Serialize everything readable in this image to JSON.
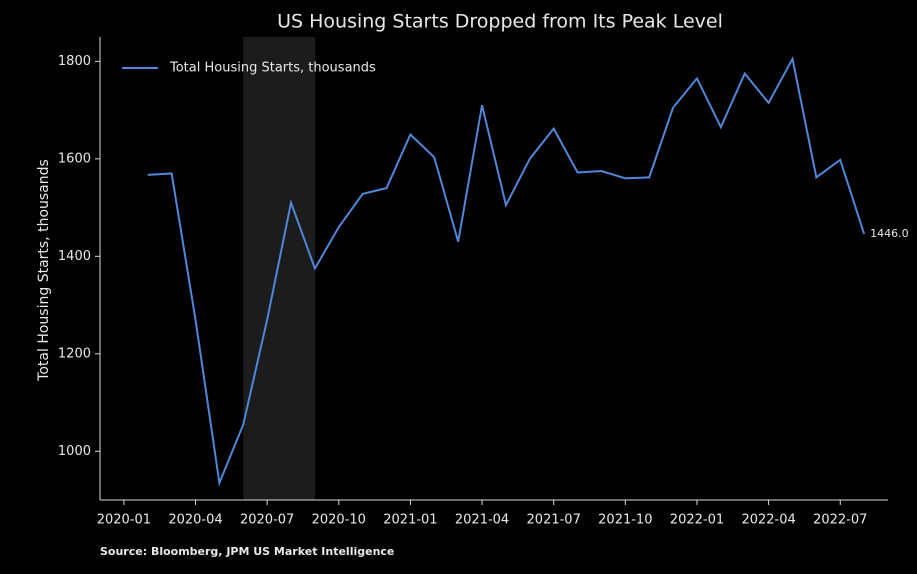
{
  "chart_data": {
    "type": "line",
    "title": "US Housing Starts Dropped from Its Peak Level",
    "y_label": "Total Housing Starts, thousands",
    "source": "Source: Bloomberg, JPM US Market Intelligence",
    "x": [
      "2020-02",
      "2020-03",
      "2020-04",
      "2020-05",
      "2020-06",
      "2020-07",
      "2020-08",
      "2020-09",
      "2020-10",
      "2020-11",
      "2020-12",
      "2021-01",
      "2021-02",
      "2021-03",
      "2021-04",
      "2021-05",
      "2021-06",
      "2021-07",
      "2021-08",
      "2021-09",
      "2021-10",
      "2021-11",
      "2021-12",
      "2022-01",
      "2022-02",
      "2022-03",
      "2022-04",
      "2022-05",
      "2022-06",
      "2022-07",
      "2022-08"
    ],
    "series": [
      {
        "name": "Total Housing Starts, thousands",
        "color": "#4f86d8",
        "values": [
          1567,
          1570,
          1270,
          935,
          1055,
          1270,
          1510,
          1375,
          1460,
          1528,
          1540,
          1650,
          1603,
          1430,
          1710,
          1505,
          1600,
          1662,
          1572,
          1575,
          1560,
          1562,
          1705,
          1765,
          1665,
          1775,
          1715,
          1805,
          1562,
          1598,
          1446
        ],
        "value_labels": [
          null,
          null,
          null,
          null,
          null,
          null,
          null,
          null,
          null,
          null,
          null,
          null,
          null,
          null,
          null,
          null,
          null,
          null,
          null,
          null,
          null,
          null,
          null,
          null,
          null,
          null,
          null,
          null,
          null,
          null,
          "1446.0"
        ]
      }
    ],
    "xlim": [
      "2019-12",
      "2022-09"
    ],
    "xticks": [
      "2020-01",
      "2020-04",
      "2020-07",
      "2020-10",
      "2021-01",
      "2021-04",
      "2021-07",
      "2021-10",
      "2022-01",
      "2022-04",
      "2022-07"
    ],
    "ylim": [
      900,
      1850
    ],
    "yticks": [
      1000,
      1200,
      1400,
      1600,
      1800
    ],
    "shaded_range": [
      "2020-06",
      "2020-09"
    ],
    "legend": "upper left",
    "grid": false
  }
}
